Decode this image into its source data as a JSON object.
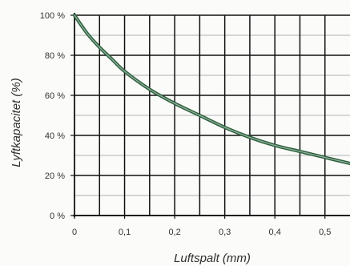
{
  "chart_data": {
    "type": "line",
    "title": "",
    "xlabel": "Luftspalt (mm)",
    "ylabel": "Lyftkapacitet (%)",
    "xlim": [
      0,
      0.55
    ],
    "ylim": [
      0,
      100
    ],
    "grid": true,
    "x_ticks": [
      "0",
      "0,1",
      "0,2",
      "0,3",
      "0,4",
      "0,5"
    ],
    "y_ticks": [
      "0 %",
      "20 %",
      "40 %",
      "60 %",
      "80 %",
      "100 %"
    ],
    "series": [
      {
        "x": [
          0,
          0.025,
          0.05,
          0.075,
          0.1,
          0.15,
          0.2,
          0.25,
          0.3,
          0.35,
          0.4,
          0.45,
          0.5,
          0.55
        ],
        "y": [
          100,
          91,
          84,
          78,
          72,
          63,
          56,
          50,
          44,
          39,
          35,
          32,
          29,
          26
        ]
      }
    ],
    "colors": {
      "line": "#2e5e3e",
      "line_highlight": "#8fb39b",
      "grid": "#111111",
      "minor_grid": "#9a9a9a",
      "background": "#fbfbf9"
    }
  }
}
